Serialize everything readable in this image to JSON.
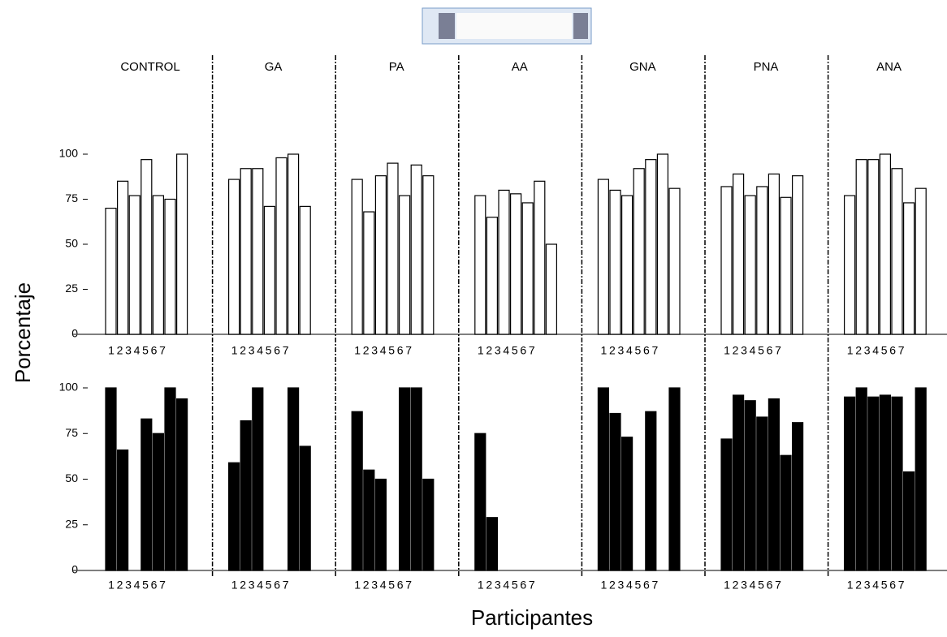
{
  "chart_data": {
    "type": "bar",
    "ylabel": "Porcentaje",
    "xlabel": "Participantes",
    "categories": [
      "1",
      "2",
      "3",
      "4",
      "5",
      "6",
      "7"
    ],
    "ylim": [
      0,
      100
    ],
    "yticks": [
      0,
      25,
      50,
      75,
      100
    ],
    "groups": [
      {
        "name": "CONTROL",
        "series": [
          {
            "color": "#ffffff",
            "values": [
              70,
              85,
              77,
              97,
              77,
              75,
              100
            ]
          },
          {
            "color": "#000000",
            "values": [
              100,
              66,
              0,
              83,
              75,
              100,
              94
            ]
          }
        ]
      },
      {
        "name": "GA",
        "series": [
          {
            "color": "#ffffff",
            "values": [
              86,
              92,
              92,
              71,
              98,
              100,
              71
            ]
          },
          {
            "color": "#000000",
            "values": [
              59,
              82,
              100,
              0,
              0,
              100,
              68
            ]
          }
        ]
      },
      {
        "name": "PA",
        "series": [
          {
            "color": "#ffffff",
            "values": [
              86,
              68,
              88,
              95,
              77,
              94,
              88
            ]
          },
          {
            "color": "#000000",
            "values": [
              87,
              55,
              50,
              0,
              100,
              100,
              50
            ]
          }
        ]
      },
      {
        "name": "AA",
        "series": [
          {
            "color": "#ffffff",
            "values": [
              77,
              65,
              80,
              78,
              73,
              85,
              50
            ]
          },
          {
            "color": "#000000",
            "values": [
              75,
              29,
              0,
              0,
              0,
              0,
              0
            ]
          }
        ]
      },
      {
        "name": "GNA",
        "series": [
          {
            "color": "#ffffff",
            "values": [
              86,
              80,
              77,
              92,
              97,
              100,
              81
            ]
          },
          {
            "color": "#000000",
            "values": [
              100,
              86,
              73,
              0,
              87,
              0,
              100
            ]
          }
        ]
      },
      {
        "name": "PNA",
        "series": [
          {
            "color": "#ffffff",
            "values": [
              82,
              89,
              77,
              82,
              89,
              76,
              88
            ]
          },
          {
            "color": "#000000",
            "values": [
              72,
              96,
              93,
              84,
              94,
              63,
              81
            ]
          }
        ]
      },
      {
        "name": "ANA",
        "series": [
          {
            "color": "#ffffff",
            "values": [
              77,
              97,
              97,
              100,
              92,
              73,
              81
            ]
          },
          {
            "color": "#000000",
            "values": [
              95,
              100,
              95,
              96,
              95,
              54,
              100
            ]
          }
        ]
      }
    ]
  }
}
